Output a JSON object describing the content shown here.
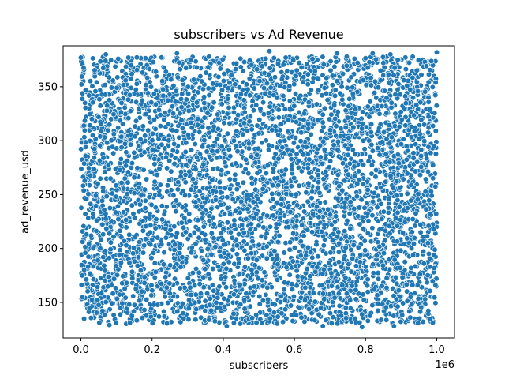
{
  "chart_data": {
    "type": "scatter",
    "title": "subscribers vs Ad Revenue",
    "xlabel": "subscribers",
    "ylabel": "ad_revenue_usd",
    "x_offset_text": "1e6",
    "x_multiplier": 1000000,
    "xlim": [
      -0.05,
      1.05
    ],
    "ylim": [
      117,
      388
    ],
    "x_ticks": [
      {
        "value": 0.0,
        "label": "0.0"
      },
      {
        "value": 0.2,
        "label": "0.2"
      },
      {
        "value": 0.4,
        "label": "0.4"
      },
      {
        "value": 0.6,
        "label": "0.6"
      },
      {
        "value": 0.8,
        "label": "0.8"
      },
      {
        "value": 1.0,
        "label": "1.0"
      }
    ],
    "y_ticks": [
      {
        "value": 150,
        "label": "150"
      },
      {
        "value": 200,
        "label": "200"
      },
      {
        "value": 250,
        "label": "250"
      },
      {
        "value": 300,
        "label": "300"
      },
      {
        "value": 350,
        "label": "350"
      }
    ],
    "grid": false,
    "legend": "none",
    "marker_color": "#1f77b4",
    "marker_edge_color": "#ffffff",
    "x_data_range": [
      0,
      1000000
    ],
    "y_data_range": [
      127,
      383
    ],
    "outliers": [
      {
        "x": 0.53,
        "y": 383
      },
      {
        "x": 1.0,
        "y": 382
      },
      {
        "x": 0.27,
        "y": 381
      },
      {
        "x": 0.72,
        "y": 381
      },
      {
        "x": 0.82,
        "y": 381
      },
      {
        "x": 0.07,
        "y": 380
      },
      {
        "x": 0.87,
        "y": 380
      },
      {
        "x": 0.0,
        "y": 377
      },
      {
        "x": 0.41,
        "y": 128
      },
      {
        "x": 0.68,
        "y": 128
      },
      {
        "x": 0.79,
        "y": 127
      },
      {
        "x": 0.88,
        "y": 128
      },
      {
        "x": 0.08,
        "y": 129
      }
    ],
    "series": [
      {
        "description": "dense uniform cloud of points",
        "x_range": [
          0,
          1000000
        ],
        "y_range": [
          130,
          378
        ],
        "approx_count": 10000
      }
    ]
  }
}
